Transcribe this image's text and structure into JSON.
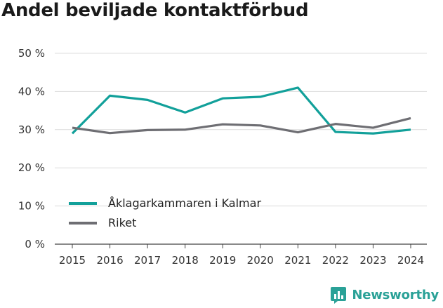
{
  "title": "Andel beviljade kontaktförbud",
  "brand": {
    "name": "Newsworthy",
    "color": "#2aa197",
    "icon": "newsworthy-logo-icon"
  },
  "chart_data": {
    "type": "line",
    "title": "Andel beviljade kontaktförbud",
    "xlabel": "",
    "ylabel": "",
    "x": [
      "2015",
      "2016",
      "2017",
      "2018",
      "2019",
      "2020",
      "2021",
      "2022",
      "2023",
      "2024"
    ],
    "ylim": [
      0,
      50
    ],
    "yticks": [
      0,
      10,
      20,
      30,
      40,
      50
    ],
    "ytick_labels": [
      "0 %",
      "10 %",
      "20 %",
      "30 %",
      "40 %",
      "50 %"
    ],
    "grid": true,
    "legend_position": "bottom-left",
    "series": [
      {
        "name": "Åklagarkammaren i Kalmar",
        "color": "#12a09a",
        "values": [
          29.0,
          38.9,
          37.8,
          34.5,
          38.2,
          38.6,
          41.0,
          29.4,
          29.0,
          30.0
        ]
      },
      {
        "name": "Riket",
        "color": "#6e6e73",
        "values": [
          30.5,
          29.1,
          29.9,
          30.0,
          31.4,
          31.1,
          29.3,
          31.5,
          30.5,
          33.0
        ]
      }
    ]
  }
}
